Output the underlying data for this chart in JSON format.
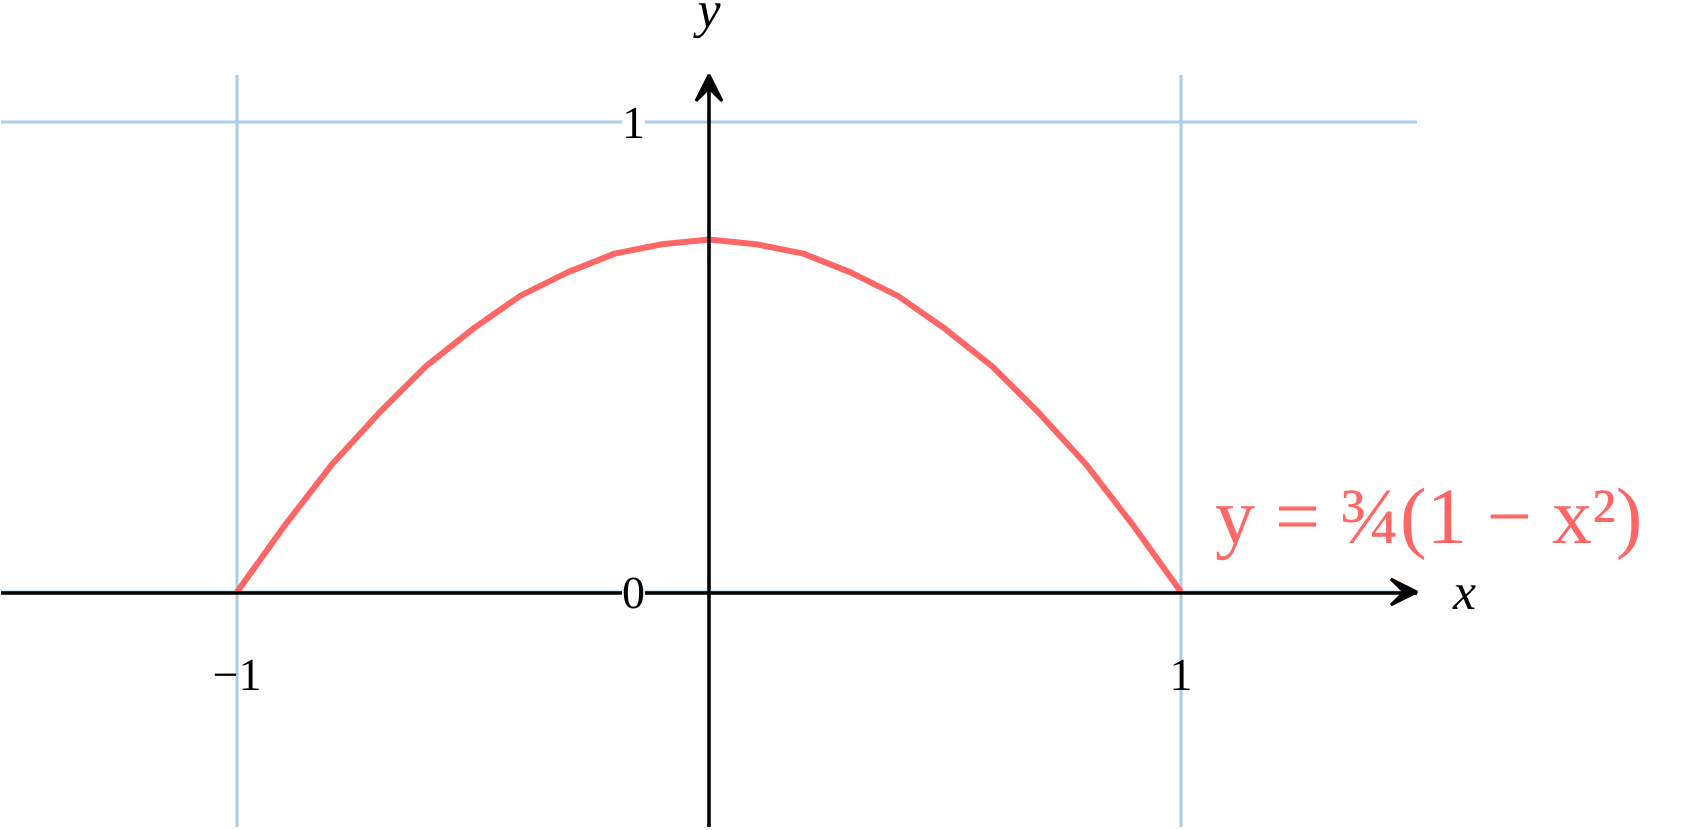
{
  "chart_data": {
    "type": "line",
    "xlabel": "x",
    "ylabel": "y",
    "x": [
      -1,
      -0.9,
      -0.8,
      -0.7,
      -0.6,
      -0.5,
      -0.4,
      -0.3,
      -0.2,
      -0.1,
      0,
      0.1,
      0.2,
      0.3,
      0.4,
      0.5,
      0.6,
      0.7,
      0.8,
      0.9,
      1
    ],
    "series": [
      {
        "color": "#ff6666",
        "values": [
          0,
          0.14,
          0.27,
          0.38,
          0.48,
          0.56,
          0.63,
          0.68,
          0.72,
          0.74,
          0.75,
          0.74,
          0.72,
          0.68,
          0.63,
          0.56,
          0.48,
          0.38,
          0.27,
          0.14,
          0
        ]
      }
    ],
    "xlim": [
      -1.5,
      1.5
    ],
    "ylim": [
      -0.5,
      1.1
    ],
    "xticks": [
      {
        "value": -1,
        "label": "−1"
      },
      1
    ],
    "yticks": [
      0,
      1
    ],
    "grid": true,
    "line_style": "solid",
    "annotations": [
      {
        "text": "y = ¾(1 − x²)",
        "x": 1,
        "y": 0
      }
    ]
  }
}
